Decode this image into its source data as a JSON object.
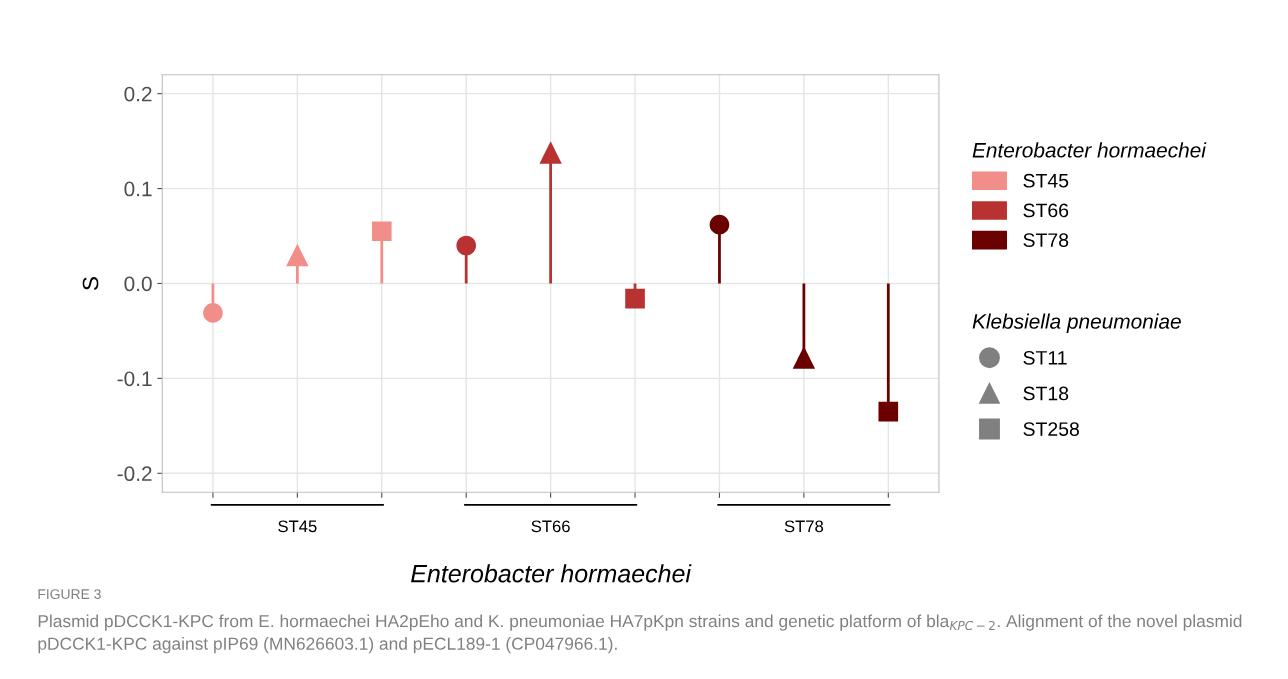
{
  "chart_data": {
    "type": "lollipop",
    "categories": [
      null,
      null,
      null,
      null,
      null,
      null,
      null,
      null,
      null
    ],
    "series": [
      {
        "name": "ST45",
        "color": "#f28e8a",
        "marker": [
          "circle",
          "triangle",
          "square",
          null,
          null,
          null,
          null,
          null,
          null
        ],
        "values": [
          -0.031,
          0.03,
          0.055,
          null,
          null,
          null,
          null,
          null,
          null
        ]
      },
      {
        "name": "ST66",
        "color": "#b83232",
        "marker": [
          null,
          null,
          null,
          "circle",
          "triangle",
          "square",
          null,
          null,
          null
        ],
        "values": [
          null,
          null,
          null,
          0.04,
          0.138,
          -0.016,
          null,
          null,
          null
        ]
      },
      {
        "name": "ST78",
        "color": "#6b0000",
        "marker": [
          null,
          null,
          null,
          null,
          null,
          null,
          "circle",
          "triangle",
          "square"
        ],
        "values": [
          null,
          null,
          null,
          null,
          null,
          null,
          0.062,
          -0.078,
          -0.135
        ]
      },
      {
        "name": "ST11",
        "type": "scatter",
        "color": "#808080",
        "marker": "circle",
        "values": [
          null,
          null,
          null,
          null,
          null,
          null,
          null,
          null,
          null
        ]
      },
      {
        "name": "ST18",
        "type": "scatter",
        "color": "#808080",
        "marker": "triangle",
        "values": [
          null,
          null,
          null,
          null,
          null,
          null,
          null,
          null,
          null
        ]
      },
      {
        "name": "ST258",
        "type": "scatter",
        "color": "#808080",
        "marker": "square",
        "values": [
          null,
          null,
          null,
          null,
          null,
          null,
          null,
          null,
          null
        ]
      }
    ],
    "ylabel": "S",
    "xlabel": "Enterobacter hormaechei",
    "legend_title": [
      "Enterobacter hormaechei",
      "Klebsiella pneumoniae"
    ],
    "legend": "right",
    "ylim": [
      -0.22,
      0.22
    ],
    "yticks": [
      {
        "value": -0.2,
        "label": "-0.2"
      },
      {
        "value": -0.1,
        "label": "-0.1"
      },
      {
        "value": 0,
        "label": "0.0"
      },
      0.1,
      0.2
    ],
    "grid": true,
    "annotations": [
      "ST45",
      "ST66",
      "ST78",
      "FIGURE 3",
      "Plasmid pDCCK1-KPC from E. hormaechei HA2pEho and K. pneumoniae HA7pKpn strains and genetic platform of bla$_{KPC−2}$. Alignment of the novel plasmid pDCCK1-KPC against pIP69 (MN626603.1) and pECL189-1 (CP047966.1)."
    ]
  }
}
